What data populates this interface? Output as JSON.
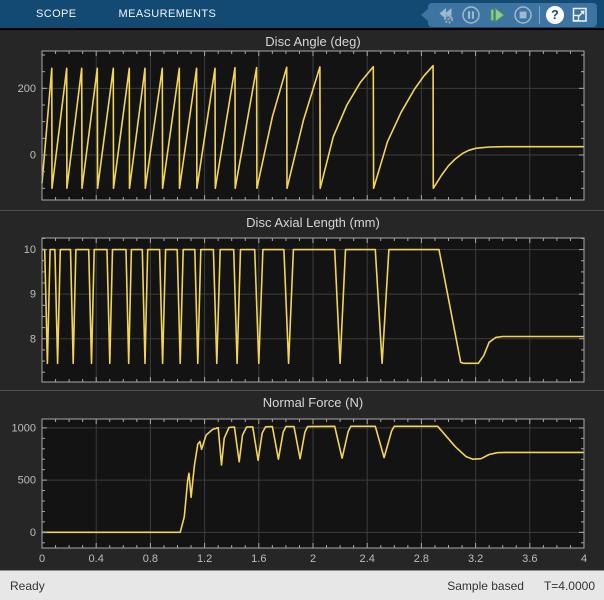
{
  "toolbar": {
    "tabs": [
      {
        "label": "SCOPE"
      },
      {
        "label": "MEASUREMENTS"
      }
    ],
    "help_label": "?",
    "buttons": [
      {
        "name": "step-back-options",
        "enabled": false
      },
      {
        "name": "pause",
        "enabled": false
      },
      {
        "name": "step-forward",
        "enabled": true
      },
      {
        "name": "stop",
        "enabled": false
      },
      {
        "name": "help",
        "enabled": true
      },
      {
        "name": "undock",
        "enabled": true
      }
    ]
  },
  "status": {
    "ready": "Ready",
    "mode": "Sample based",
    "time": "T=4.0000"
  },
  "colors": {
    "line": "#F2D458",
    "plot_bg": "#131313",
    "panel_bg": "#262626",
    "grid": "#3d3d3d",
    "axis": "#a8a8a8",
    "tick_label": "#bdbdbd",
    "title": "#d6d6d6",
    "toolbar_bg": "#134a73",
    "quick_panel_bg": "#3e74a1",
    "disabled_icon": "#9fb9cf",
    "enabled_green": "#90cd8e",
    "status_bg": "#e7e7e7",
    "status_text": "#333333"
  },
  "chart_data": [
    {
      "type": "line",
      "title": "Disc Angle (deg)",
      "xlim": [
        0,
        4
      ],
      "ylim": [
        -135,
        312
      ],
      "xticks": [
        {
          "v": 0,
          "l": "0"
        },
        {
          "v": 0.4,
          "l": "0.4"
        },
        {
          "v": 0.8,
          "l": "0.8"
        },
        {
          "v": 1.2,
          "l": "1.2"
        },
        {
          "v": 1.6,
          "l": "1.6"
        },
        {
          "v": 2,
          "l": "2"
        },
        {
          "v": 2.4,
          "l": "2.4"
        },
        {
          "v": 2.8,
          "l": "2.8"
        },
        {
          "v": 3.2,
          "l": "3.2"
        },
        {
          "v": 3.6,
          "l": "3.6"
        },
        {
          "v": 4,
          "l": "4"
        }
      ],
      "yticks": [
        {
          "v": 0,
          "l": "0"
        },
        {
          "v": 200,
          "l": "200"
        }
      ],
      "xminor": 0.1,
      "yminor": 50,
      "show_xlabels": false,
      "grid": true,
      "box": {
        "l": 42,
        "r": 584,
        "t": 21,
        "b": 170
      },
      "series": [
        {
          "name": "disc-angle",
          "points": [
            [
              0,
              -85
            ],
            [
              0.072,
              260
            ],
            [
              0.074,
              -100
            ],
            [
              0.182,
              260
            ],
            [
              0.184,
              -100
            ],
            [
              0.293,
              260
            ],
            [
              0.295,
              -100
            ],
            [
              0.408,
              260
            ],
            [
              0.41,
              -100
            ],
            [
              0.526,
              260
            ],
            [
              0.528,
              -100
            ],
            [
              0.644,
              260
            ],
            [
              0.646,
              -100
            ],
            [
              0.76,
              260
            ],
            [
              0.762,
              -100
            ],
            [
              0.888,
              260
            ],
            [
              0.89,
              -100
            ],
            [
              1.013,
              260
            ],
            [
              1.015,
              -100
            ],
            [
              1.141,
              260
            ],
            [
              1.143,
              -100
            ],
            [
              1.277,
              260
            ],
            [
              1.279,
              -100
            ],
            [
              1.424,
              262
            ],
            [
              1.426,
              -100
            ],
            [
              1.584,
              262
            ],
            [
              1.586,
              -100
            ],
            [
              1.7,
              115
            ],
            [
              1.806,
              263
            ],
            [
              1.808,
              -100
            ],
            [
              1.93,
              105
            ],
            [
              2.051,
              264
            ],
            [
              2.053,
              -100
            ],
            [
              2.15,
              55
            ],
            [
              2.25,
              150
            ],
            [
              2.35,
              218
            ],
            [
              2.445,
              265
            ],
            [
              2.447,
              -100
            ],
            [
              2.55,
              40
            ],
            [
              2.65,
              128
            ],
            [
              2.75,
              198
            ],
            [
              2.82,
              238
            ],
            [
              2.886,
              268
            ],
            [
              2.888,
              -100
            ],
            [
              2.95,
              -60
            ],
            [
              3.0,
              -32
            ],
            [
              3.05,
              -12
            ],
            [
              3.1,
              4
            ],
            [
              3.15,
              14
            ],
            [
              3.2,
              20
            ],
            [
              3.3,
              24
            ],
            [
              3.42,
              25
            ],
            [
              4,
              25
            ]
          ]
        }
      ]
    },
    {
      "type": "line",
      "title": "Disc Axial Length (mm)",
      "xlim": [
        0,
        4
      ],
      "ylim": [
        7.03,
        10.26
      ],
      "xticks": [
        {
          "v": 0,
          "l": "0"
        },
        {
          "v": 0.4,
          "l": "0.4"
        },
        {
          "v": 0.8,
          "l": "0.8"
        },
        {
          "v": 1.2,
          "l": "1.2"
        },
        {
          "v": 1.6,
          "l": "1.6"
        },
        {
          "v": 2,
          "l": "2"
        },
        {
          "v": 2.4,
          "l": "2.4"
        },
        {
          "v": 2.8,
          "l": "2.8"
        },
        {
          "v": 3.2,
          "l": "3.2"
        },
        {
          "v": 3.6,
          "l": "3.6"
        },
        {
          "v": 4,
          "l": "4"
        }
      ],
      "yticks": [
        {
          "v": 8,
          "l": "8"
        },
        {
          "v": 9,
          "l": "9"
        },
        {
          "v": 10,
          "l": "10"
        }
      ],
      "xminor": 0.1,
      "yminor": 0.25,
      "show_xlabels": false,
      "grid": true,
      "box": {
        "l": 42,
        "r": 584,
        "t": 27,
        "b": 171
      },
      "series": [
        {
          "name": "disc-axial-length",
          "points": [
            [
              0,
              10
            ],
            [
              0.02,
              10
            ],
            [
              0.04,
              7.45
            ],
            [
              0.06,
              10
            ],
            [
              0.095,
              10
            ],
            [
              0.115,
              7.45
            ],
            [
              0.135,
              10
            ],
            [
              0.21,
              10
            ],
            [
              0.23,
              7.45
            ],
            [
              0.25,
              10
            ],
            [
              0.345,
              10
            ],
            [
              0.365,
              7.45
            ],
            [
              0.385,
              10
            ],
            [
              0.48,
              10
            ],
            [
              0.5,
              7.45
            ],
            [
              0.52,
              10
            ],
            [
              0.62,
              10
            ],
            [
              0.64,
              7.45
            ],
            [
              0.66,
              10
            ],
            [
              0.74,
              10
            ],
            [
              0.76,
              7.45
            ],
            [
              0.78,
              10
            ],
            [
              0.868,
              10
            ],
            [
              0.89,
              7.45
            ],
            [
              0.912,
              10
            ],
            [
              0.998,
              10
            ],
            [
              1.02,
              7.45
            ],
            [
              1.042,
              10
            ],
            [
              1.128,
              10
            ],
            [
              1.15,
              7.45
            ],
            [
              1.172,
              10
            ],
            [
              1.265,
              10
            ],
            [
              1.29,
              7.45
            ],
            [
              1.315,
              10
            ],
            [
              1.415,
              10
            ],
            [
              1.44,
              7.45
            ],
            [
              1.465,
              10
            ],
            [
              1.57,
              10
            ],
            [
              1.6,
              7.45
            ],
            [
              1.63,
              10
            ],
            [
              1.785,
              10
            ],
            [
              1.82,
              7.45
            ],
            [
              1.855,
              10
            ],
            [
              2.16,
              10
            ],
            [
              2.2,
              7.45
            ],
            [
              2.24,
              10
            ],
            [
              2.46,
              10
            ],
            [
              2.51,
              7.45
            ],
            [
              2.56,
              10
            ],
            [
              2.93,
              10
            ],
            [
              3.09,
              7.47
            ],
            [
              3.11,
              7.45
            ],
            [
              3.22,
              7.45
            ],
            [
              3.26,
              7.62
            ],
            [
              3.3,
              7.92
            ],
            [
              3.35,
              8.03
            ],
            [
              3.4,
              8.05
            ],
            [
              4,
              8.05
            ]
          ]
        }
      ]
    },
    {
      "type": "line",
      "title": "Normal Force (N)",
      "xlim": [
        0,
        4
      ],
      "ylim": [
        -150,
        1085
      ],
      "xticks": [
        {
          "v": 0,
          "l": "0"
        },
        {
          "v": 0.4,
          "l": "0.4"
        },
        {
          "v": 0.8,
          "l": "0.8"
        },
        {
          "v": 1.2,
          "l": "1.2"
        },
        {
          "v": 1.6,
          "l": "1.6"
        },
        {
          "v": 2,
          "l": "2"
        },
        {
          "v": 2.4,
          "l": "2.4"
        },
        {
          "v": 2.8,
          "l": "2.8"
        },
        {
          "v": 3.2,
          "l": "3.2"
        },
        {
          "v": 3.6,
          "l": "3.6"
        },
        {
          "v": 4,
          "l": "4"
        }
      ],
      "yticks": [
        {
          "v": 0,
          "l": "0"
        },
        {
          "v": 500,
          "l": "500"
        },
        {
          "v": 1000,
          "l": "1000"
        }
      ],
      "xminor": 0.1,
      "yminor": 100,
      "show_xlabels": true,
      "grid": true,
      "box": {
        "l": 42,
        "r": 584,
        "t": 28,
        "b": 157
      },
      "series": [
        {
          "name": "normal-force",
          "points": [
            [
              0,
              0
            ],
            [
              1.02,
              0
            ],
            [
              1.05,
              150
            ],
            [
              1.075,
              500
            ],
            [
              1.085,
              565
            ],
            [
              1.1,
              335
            ],
            [
              1.125,
              640
            ],
            [
              1.15,
              845
            ],
            [
              1.165,
              870
            ],
            [
              1.178,
              795
            ],
            [
              1.21,
              930
            ],
            [
              1.26,
              985
            ],
            [
              1.3,
              1002
            ],
            [
              1.325,
              645
            ],
            [
              1.345,
              900
            ],
            [
              1.38,
              1005
            ],
            [
              1.42,
              1008
            ],
            [
              1.455,
              675
            ],
            [
              1.48,
              930
            ],
            [
              1.51,
              1008
            ],
            [
              1.555,
              1010
            ],
            [
              1.595,
              690
            ],
            [
              1.625,
              950
            ],
            [
              1.65,
              1010
            ],
            [
              1.7,
              1012
            ],
            [
              1.745,
              700
            ],
            [
              1.78,
              960
            ],
            [
              1.8,
              1012
            ],
            [
              1.86,
              1012
            ],
            [
              1.905,
              705
            ],
            [
              1.94,
              960
            ],
            [
              1.96,
              1012
            ],
            [
              2.16,
              1015
            ],
            [
              2.215,
              710
            ],
            [
              2.26,
              965
            ],
            [
              2.28,
              1015
            ],
            [
              2.46,
              1015
            ],
            [
              2.525,
              715
            ],
            [
              2.58,
              970
            ],
            [
              2.6,
              1015
            ],
            [
              2.92,
              1015
            ],
            [
              3.05,
              820
            ],
            [
              3.13,
              725
            ],
            [
              3.18,
              700
            ],
            [
              3.24,
              705
            ],
            [
              3.3,
              745
            ],
            [
              3.36,
              762
            ],
            [
              3.42,
              765
            ],
            [
              4,
              765
            ]
          ]
        }
      ]
    }
  ]
}
